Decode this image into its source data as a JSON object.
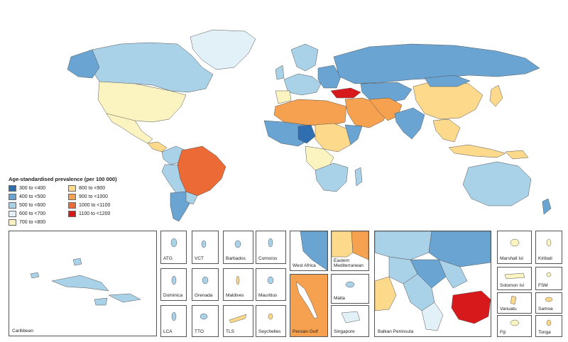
{
  "legend": {
    "title": "Age-standardised prevalence (per 100 000)",
    "items": [
      {
        "label": "300 to <400",
        "color": "#2f6fb0"
      },
      {
        "label": "800 to <900",
        "color": "#fdd98c"
      },
      {
        "label": "400 to <500",
        "color": "#69a4d2"
      },
      {
        "label": "900 to <1000",
        "color": "#f6a14f"
      },
      {
        "label": "500 to <600",
        "color": "#a9d1e8"
      },
      {
        "label": "1000 to <1100",
        "color": "#ec6a35"
      },
      {
        "label": "600 to <700",
        "color": "#e2f1f7"
      },
      {
        "label": "1100 to <1200",
        "color": "#d7191c"
      },
      {
        "label": "700 to <800",
        "color": "#fbf4c0"
      }
    ]
  },
  "insets": {
    "caribbean": "Caribbean",
    "atg": "ATG",
    "vct": "VCT",
    "barbados": "Barbados",
    "comoros": "Comoros",
    "dominica": "Dominica",
    "grenada": "Grenada",
    "maldives": "Maldives",
    "mauritius": "Mauritius",
    "lca": "LCA",
    "tto": "TTO",
    "tls": "TLS",
    "seychelles": "Seychelles",
    "west_africa": "West Africa",
    "eastern_med": "Eastern Mediterranean",
    "malta": "Malta",
    "persian_gulf": "Persian Gulf",
    "singapore": "Singapore",
    "balkan": "Balkan Peninsula",
    "marshall": "Marshall Isl",
    "kiribati": "Kiribati",
    "solomon": "Solomon Isl",
    "fsm": "FSM",
    "vanuatu": "Vanuatu",
    "samoa": "Samoa",
    "fiji": "Fiji",
    "tonga": "Tonga"
  }
}
